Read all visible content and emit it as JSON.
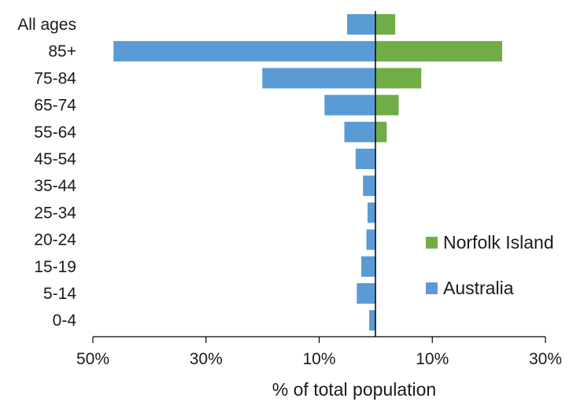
{
  "chart_data": {
    "type": "bar",
    "orientation": "horizontal-diverging",
    "title": "",
    "xlabel": "% of total population",
    "ylabel": "",
    "categories": [
      "All ages",
      "85+",
      "75-84",
      "65-74",
      "55-64",
      "45-54",
      "35-44",
      "25-34",
      "20-24",
      "15-19",
      "5-14",
      "0-4"
    ],
    "x_ticks": [
      "50%",
      "30%",
      "10%",
      "10%",
      "30%"
    ],
    "xlim": [
      -50,
      30
    ],
    "grid": false,
    "legend_position": "right",
    "series": [
      {
        "name": "Australia",
        "color": "#5b9bd5",
        "side": "left",
        "values": [
          5,
          46.3,
          20,
          9,
          5.5,
          3.5,
          2.2,
          1.4,
          1.6,
          2.5,
          3.3,
          1.1
        ]
      },
      {
        "name": "Norfolk Island",
        "color": "#70ad47",
        "side": "right",
        "values": [
          3.5,
          22.4,
          8.1,
          4.1,
          2,
          0,
          0,
          0,
          0,
          0,
          0,
          0
        ]
      }
    ],
    "legend_order": [
      "Norfolk Island",
      "Australia"
    ]
  }
}
